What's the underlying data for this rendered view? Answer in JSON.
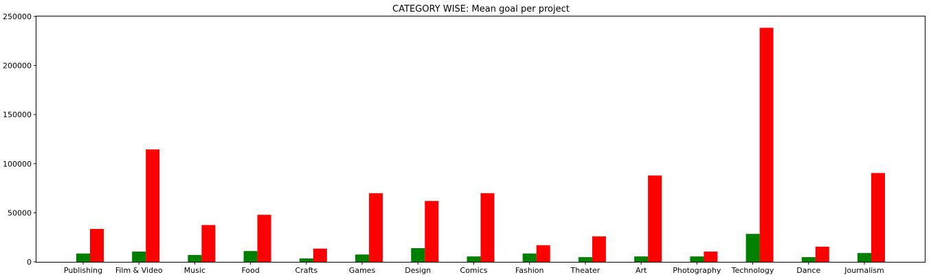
{
  "chart_data": {
    "type": "bar",
    "title": "CATEGORY WISE: Mean goal per project",
    "xlabel": "",
    "ylabel": "",
    "ylim": [
      0,
      250000
    ],
    "yticks": [
      0,
      50000,
      100000,
      150000,
      200000,
      250000
    ],
    "ytick_labels": [
      "0",
      "50000",
      "100000",
      "150000",
      "200000",
      "250000"
    ],
    "grid": false,
    "legend": "none",
    "categories": [
      "Publishing",
      "Film & Video",
      "Music",
      "Food",
      "Crafts",
      "Games",
      "Design",
      "Comics",
      "Fashion",
      "Theater",
      "Art",
      "Photography",
      "Technology",
      "Dance",
      "Journalism"
    ],
    "series": [
      {
        "color": "#008000",
        "values": [
          8500,
          10500,
          7000,
          11000,
          3500,
          7500,
          14000,
          5500,
          8500,
          4800,
          5500,
          5500,
          28500,
          4800,
          9000
        ]
      },
      {
        "color": "#ff0000",
        "values": [
          33500,
          114500,
          37500,
          48000,
          13500,
          70000,
          62000,
          70000,
          17000,
          26000,
          88000,
          10500,
          238500,
          15500,
          90500
        ]
      }
    ]
  }
}
